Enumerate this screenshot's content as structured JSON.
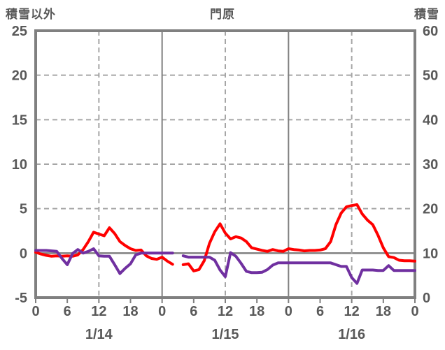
{
  "titles": {
    "left_axis_title": "積雪以外",
    "chart_title": "門原",
    "right_axis_title": "積雪"
  },
  "colors": {
    "series_other_than_snow": "#ff0000",
    "series_snow_depth": "#7030a0",
    "axis_border": "#808080",
    "solid_grid": "#808080",
    "dashed_grid": "#a6a6a6",
    "label_text": "#595959",
    "background": "#ffffff"
  },
  "chart_data": {
    "type": "line",
    "title": "門原",
    "grid": true,
    "legend": "none",
    "x_hours_range": [
      0,
      72
    ],
    "x_tick_step_hours": 6,
    "x_tick_labels": [
      "0",
      "6",
      "12",
      "18",
      "0",
      "6",
      "12",
      "18",
      "0",
      "6",
      "12",
      "18",
      "0"
    ],
    "day_labels": [
      "1/14",
      "1/15",
      "1/16"
    ],
    "day_label_center_hours": [
      12,
      36,
      60
    ],
    "dashed_vline_hours": [
      12,
      36,
      60
    ],
    "solid_vline_hours": [
      24,
      48
    ],
    "left_axis": {
      "label": "積雪以外",
      "min": -5,
      "max": 25,
      "ticks": [
        25,
        20,
        15,
        10,
        5,
        0,
        -5
      ],
      "zero_line": 0
    },
    "right_axis": {
      "label": "積雪",
      "min": 0,
      "max": 60,
      "ticks": [
        60,
        50,
        40,
        30,
        20,
        10,
        0
      ]
    },
    "series": [
      {
        "name": "積雪以外",
        "axis": "left",
        "color": "#ff0000",
        "gap_note": "missing data at hour 27",
        "values": [
          0.1,
          -0.1,
          -0.25,
          -0.35,
          -0.3,
          -0.35,
          -0.3,
          -0.35,
          -0.2,
          0.4,
          1.3,
          2.35,
          2.15,
          1.95,
          2.85,
          2.2,
          1.3,
          0.85,
          0.5,
          0.3,
          0.35,
          -0.3,
          -0.6,
          -0.7,
          -0.45,
          -0.9,
          -1.25,
          null,
          -1.3,
          -1.2,
          -2.0,
          -1.85,
          -0.85,
          1.1,
          2.4,
          3.3,
          2.25,
          1.6,
          1.85,
          1.7,
          1.3,
          0.6,
          0.45,
          0.3,
          0.2,
          0.4,
          0.25,
          0.2,
          0.5,
          0.4,
          0.35,
          0.25,
          0.3,
          0.3,
          0.35,
          0.5,
          1.3,
          3.2,
          4.5,
          5.2,
          5.35,
          5.45,
          4.4,
          3.7,
          3.2,
          2.0,
          0.6,
          -0.4,
          -0.5,
          -0.8,
          -0.85,
          -0.85,
          -0.9
        ]
      },
      {
        "name": "積雪",
        "axis": "right",
        "color": "#7030a0",
        "gap_note": "missing data at hour 27",
        "values": [
          10.6,
          10.6,
          10.6,
          10.5,
          10.4,
          8.8,
          7.4,
          9.9,
          10.8,
          10.0,
          10.4,
          11.0,
          9.4,
          9.3,
          9.3,
          7.4,
          5.4,
          6.6,
          7.6,
          9.6,
          10.0,
          10.0,
          10.0,
          10.0,
          10.0,
          10.0,
          10.0,
          null,
          9.4,
          9.1,
          9.1,
          9.1,
          9.1,
          9.1,
          8.4,
          6.2,
          4.7,
          10.1,
          9.3,
          7.7,
          5.9,
          5.6,
          5.6,
          5.7,
          6.3,
          7.3,
          7.8,
          7.8,
          7.8,
          7.8,
          7.8,
          7.8,
          7.8,
          7.8,
          7.8,
          7.8,
          7.8,
          7.4,
          7.0,
          7.0,
          4.5,
          3.2,
          6.2,
          6.2,
          6.2,
          6.1,
          6.1,
          7.2,
          6.1,
          6.1,
          6.1,
          6.1,
          6.1
        ]
      }
    ]
  }
}
